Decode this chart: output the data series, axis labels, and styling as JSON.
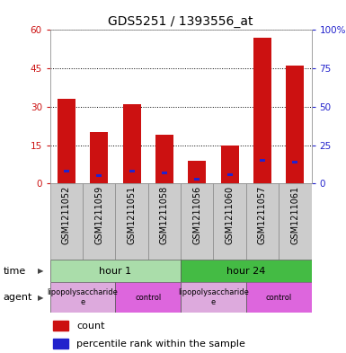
{
  "title": "GDS5251 / 1393556_at",
  "samples": [
    "GSM1211052",
    "GSM1211059",
    "GSM1211051",
    "GSM1211058",
    "GSM1211056",
    "GSM1211060",
    "GSM1211057",
    "GSM1211061"
  ],
  "counts": [
    33,
    20,
    31,
    19,
    9,
    15,
    57,
    46
  ],
  "percentile_ranks": [
    8,
    5,
    8,
    7,
    3,
    6,
    15,
    14
  ],
  "ylim_left": [
    0,
    60
  ],
  "ylim_right": [
    0,
    100
  ],
  "yticks_left": [
    0,
    15,
    30,
    45,
    60
  ],
  "yticks_right": [
    0,
    25,
    50,
    75,
    100
  ],
  "bar_color": "#cc1111",
  "percentile_color": "#2222cc",
  "time_groups": [
    {
      "label": "hour 1",
      "start": 0,
      "end": 4,
      "color": "#aaddaa"
    },
    {
      "label": "hour 24",
      "start": 4,
      "end": 8,
      "color": "#44bb44"
    }
  ],
  "agent_groups": [
    {
      "label": "lipopolysaccharide\ne",
      "start": 0,
      "end": 2,
      "color": "#ddaadd"
    },
    {
      "label": "control",
      "start": 2,
      "end": 4,
      "color": "#dd66dd"
    },
    {
      "label": "lipopolysaccharide\ne",
      "start": 4,
      "end": 6,
      "color": "#ddaadd"
    },
    {
      "label": "control",
      "start": 6,
      "end": 8,
      "color": "#dd66dd"
    }
  ],
  "legend_count_label": "count",
  "legend_percentile_label": "percentile rank within the sample",
  "time_label": "time",
  "agent_label": "agent",
  "title_fontsize": 10,
  "tick_fontsize": 7.5,
  "sample_fontsize": 7,
  "row_fontsize": 8,
  "legend_fontsize": 8,
  "background_color": "#ffffff",
  "plot_bg_color": "#ffffff",
  "xtick_bg_color": "#cccccc",
  "bar_width": 0.55
}
